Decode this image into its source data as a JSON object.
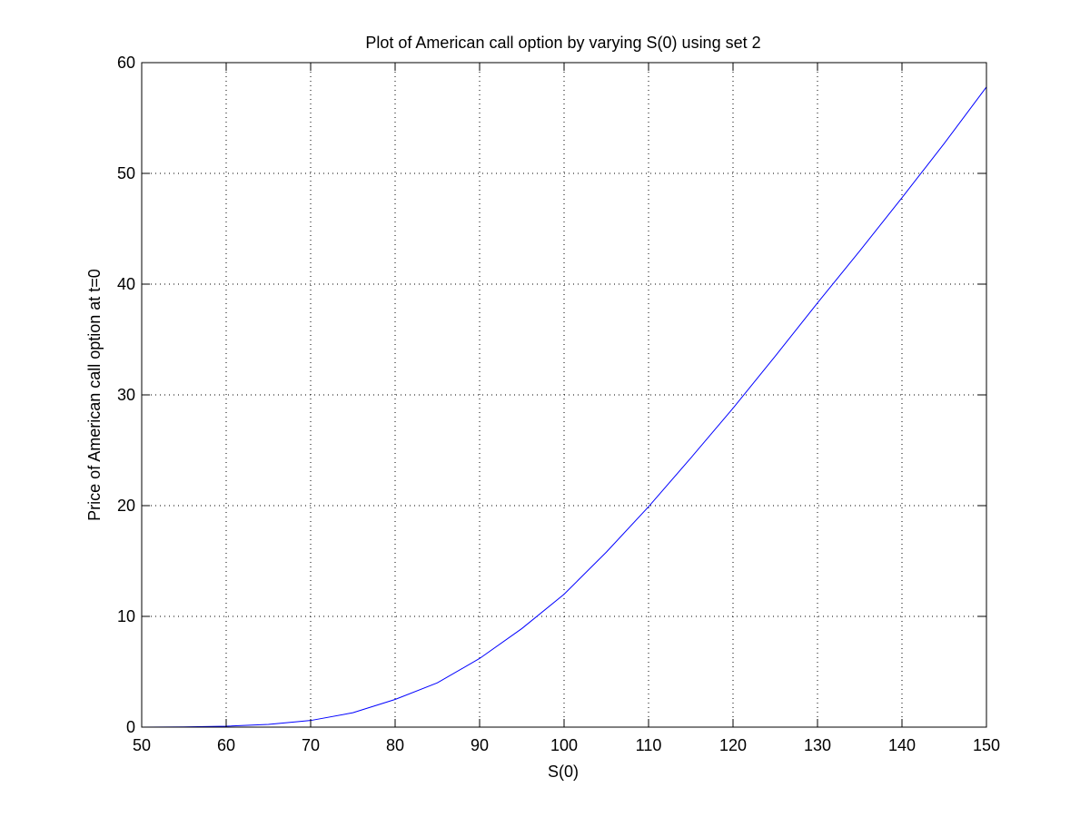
{
  "chart_data": {
    "type": "line",
    "title": "Plot of American call option by varying S(0) using set 2",
    "xlabel": "S(0)",
    "ylabel": "Price of American call option at t=0",
    "xlim": [
      50,
      150
    ],
    "ylim": [
      0,
      60
    ],
    "x_ticks": [
      50,
      60,
      70,
      80,
      90,
      100,
      110,
      120,
      130,
      140,
      150
    ],
    "y_ticks": [
      0,
      10,
      20,
      30,
      40,
      50,
      60
    ],
    "x_tick_labels": [
      "50",
      "60",
      "70",
      "80",
      "90",
      "100",
      "110",
      "120",
      "130",
      "140",
      "150"
    ],
    "y_tick_labels": [
      "0",
      "10",
      "20",
      "30",
      "40",
      "50",
      "60"
    ],
    "grid": true,
    "series": [
      {
        "color": "#0000ff",
        "x": [
          50,
          55,
          60,
          65,
          70,
          75,
          80,
          85,
          90,
          95,
          100,
          105,
          110,
          115,
          120,
          125,
          130,
          135,
          140,
          145,
          150
        ],
        "y": [
          0.0,
          0.02,
          0.08,
          0.25,
          0.6,
          1.3,
          2.5,
          4.0,
          6.2,
          8.9,
          12.0,
          15.8,
          19.9,
          24.3,
          28.8,
          33.5,
          38.3,
          43.0,
          47.8,
          52.7,
          57.8
        ]
      }
    ]
  }
}
